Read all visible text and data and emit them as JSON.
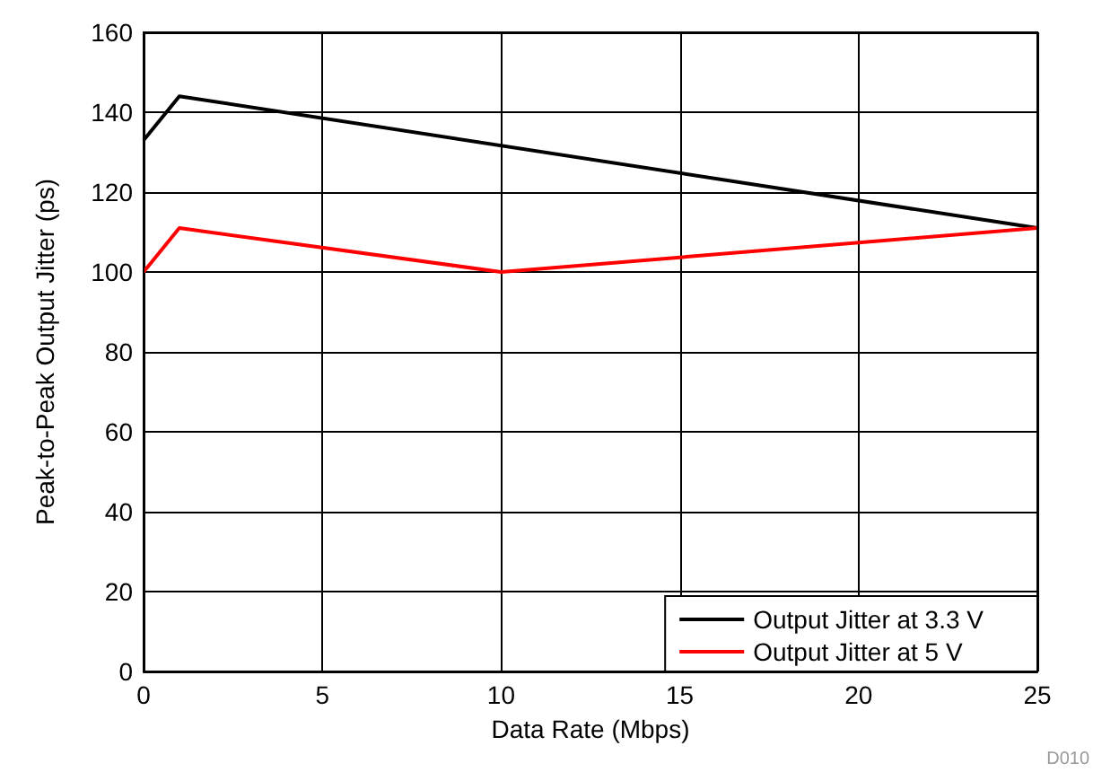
{
  "chart_data": {
    "type": "line",
    "xlabel": "Data Rate (Mbps)",
    "ylabel": "Peak-to-Peak Output Jitter (ps)",
    "xlim": [
      0,
      25
    ],
    "xticks": [
      0,
      5,
      10,
      15,
      20,
      25
    ],
    "ylim": [
      0,
      160
    ],
    "yticks": [
      0,
      20,
      40,
      60,
      80,
      100,
      120,
      140,
      160
    ],
    "grid": true,
    "legend": "bottom right",
    "marker": "none",
    "line_style": "solid",
    "annotations": [
      "D010"
    ],
    "series": [
      {
        "name": "Output Jitter at 3.3 V",
        "color": "#000000",
        "x": [
          0,
          1,
          25
        ],
        "values": [
          133,
          144,
          111
        ]
      },
      {
        "name": "Output Jitter at 5 V",
        "color": "#ff0000",
        "x": [
          0,
          1,
          10,
          25
        ],
        "values": [
          100,
          111,
          100,
          111
        ]
      }
    ]
  }
}
